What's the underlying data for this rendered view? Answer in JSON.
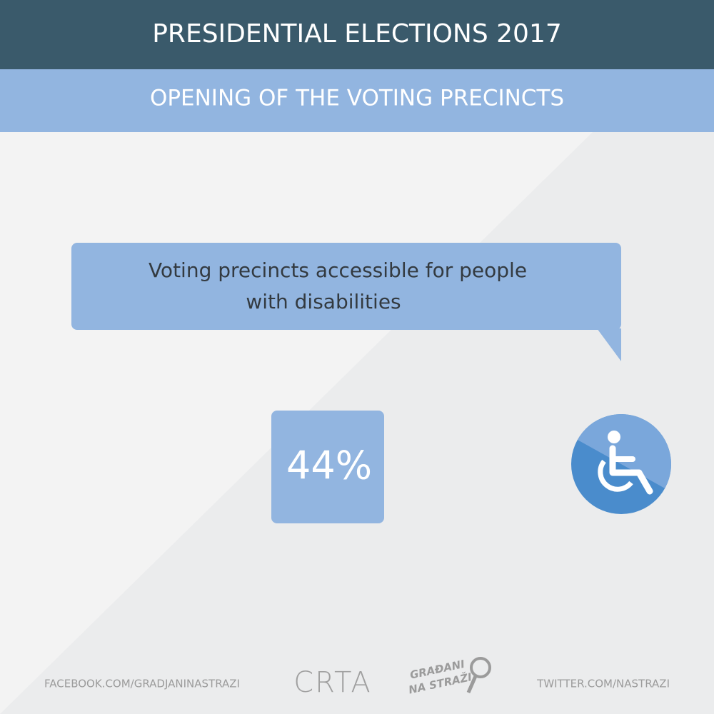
{
  "header": {
    "title": "PRESIDENTIAL ELECTIONS 2017",
    "subtitle": "OPENING OF THE VOTING PRECINCTS"
  },
  "callout": {
    "lines": [
      "Voting precincts accessible for people",
      "with disabilities"
    ]
  },
  "stat": "44%",
  "footer": {
    "facebook": "FACEBOOK.COM/GRADJANINASTRAZI",
    "logo_left": "CRTA",
    "logo_right": [
      "GRAĐANI",
      "NA STRAŽI"
    ],
    "twitter": "TWITTER.COM/NASTRAZI"
  }
}
